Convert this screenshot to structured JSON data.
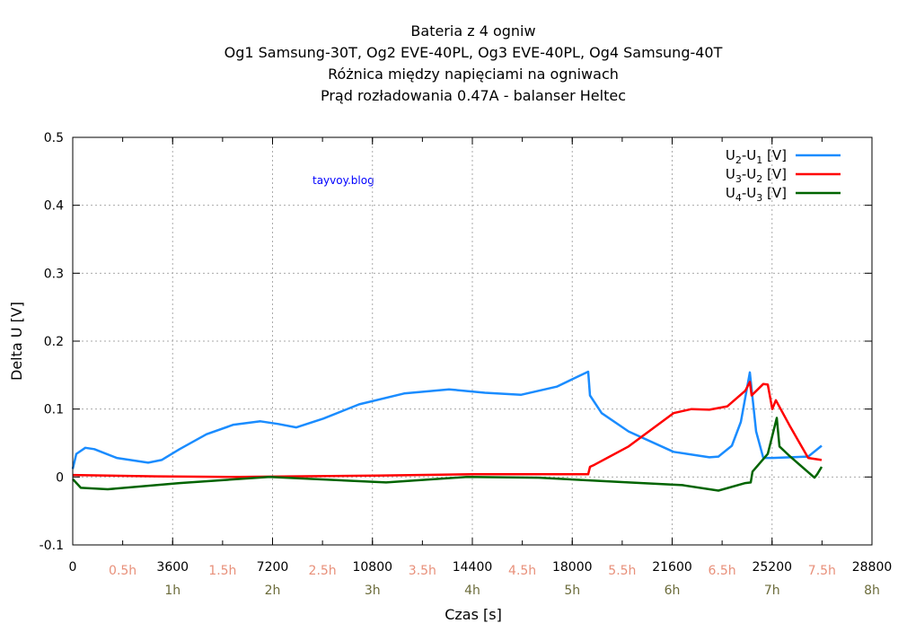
{
  "chart_data": {
    "type": "line",
    "title": [
      "Bateria z 4 ogniw",
      "Og1 Samsung-30T,  Og2 EVE-40PL, Og3 EVE-40PL, Og4 Samsung-40T",
      "Różnica między napięciami na ogniwach",
      "Prąd rozładowania 0.47A - balanser Heltec"
    ],
    "watermark": "tayvoy.blog",
    "xlabel": "Czas [s]",
    "ylabel": "Delta U [V]",
    "xlim": [
      0,
      28800
    ],
    "ylim": [
      -0.1,
      0.5
    ],
    "xticks": [
      "0",
      "3600",
      "7200",
      "10800",
      "14400",
      "18000",
      "21600",
      "25200",
      "28800"
    ],
    "yticks": [
      "-0.1",
      "0",
      "0.1",
      "0.2",
      "0.3",
      "0.4",
      "0.5"
    ],
    "half_hour_labels": [
      "0.5h",
      "1.5h",
      "2.5h",
      "3.5h",
      "4.5h",
      "5.5h",
      "6.5h",
      "7.5h"
    ],
    "hour_labels": [
      "1h",
      "2h",
      "3h",
      "4h",
      "5h",
      "6h",
      "7h",
      "8h"
    ],
    "grid": true,
    "legend_position": "top-right",
    "series": [
      {
        "name": "U2-U1 [V]",
        "sub": [
          "2",
          "1"
        ],
        "color": "#1a8cff",
        "x": [
          0,
          129,
          453,
          777,
          1586,
          2718,
          3204,
          3851,
          4822,
          5793,
          6764,
          7410,
          8058,
          9029,
          10323,
          11941,
          13559,
          14853,
          16148,
          17442,
          18575,
          18640,
          19060,
          20031,
          21649,
          22943,
          23267,
          23753,
          24076,
          24400,
          24627,
          24885,
          25209,
          25856,
          26504,
          26989
        ],
        "y": [
          0.012,
          0.034,
          0.043,
          0.041,
          0.028,
          0.021,
          0.025,
          0.041,
          0.063,
          0.077,
          0.082,
          0.078,
          0.073,
          0.086,
          0.107,
          0.123,
          0.129,
          0.124,
          0.121,
          0.133,
          0.155,
          0.12,
          0.094,
          0.067,
          0.037,
          0.029,
          0.03,
          0.046,
          0.081,
          0.154,
          0.067,
          0.028,
          0.028,
          0.029,
          0.03,
          0.046
        ]
      },
      {
        "name": "U3-U2 [V]",
        "sub": [
          "3",
          "2"
        ],
        "color": "#ff0000",
        "x": [
          0,
          3000,
          6000,
          8000,
          11000,
          14400,
          18000,
          18575,
          18640,
          18800,
          20031,
          21649,
          22296,
          22943,
          23590,
          24237,
          24400,
          24465,
          24885,
          25047,
          25209,
          25338,
          25856,
          26504,
          26989
        ],
        "y": [
          0.003,
          0.001,
          0.0,
          0.001,
          0.002,
          0.004,
          0.004,
          0.004,
          0.015,
          0.018,
          0.045,
          0.094,
          0.1,
          0.099,
          0.104,
          0.127,
          0.14,
          0.12,
          0.137,
          0.136,
          0.1,
          0.113,
          0.074,
          0.028,
          0.025
        ]
      },
      {
        "name": "U4-U3 [V]",
        "sub": [
          "4",
          "3"
        ],
        "color": "#006400",
        "x": [
          0,
          291,
          1262,
          3851,
          7087,
          8705,
          11294,
          14206,
          16795,
          20031,
          21973,
          23267,
          24237,
          24432,
          24497,
          25047,
          25371,
          25468,
          25856,
          26730,
          26827,
          26989
        ],
        "y": [
          -0.003,
          -0.016,
          -0.018,
          -0.009,
          0.0,
          -0.003,
          -0.008,
          0.0,
          -0.001,
          -0.008,
          -0.012,
          -0.02,
          -0.009,
          -0.008,
          0.008,
          0.034,
          0.087,
          0.045,
          0.03,
          -0.001,
          0.004,
          0.015
        ]
      }
    ]
  }
}
